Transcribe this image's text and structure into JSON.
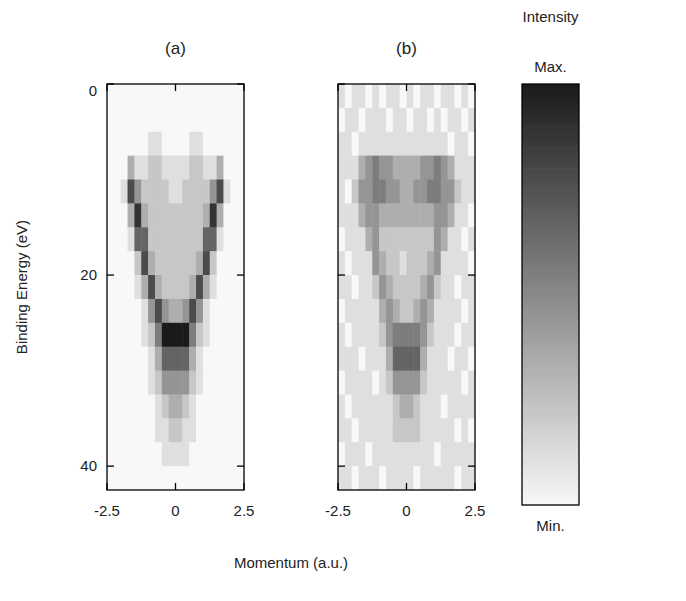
{
  "chart_data": [
    {
      "type": "heatmap",
      "title": "(a)",
      "y_label": "Binding Energy (eV)",
      "xlim": [
        -2.5,
        2.5
      ],
      "ylim": [
        0,
        42.5
      ],
      "xticks": [
        -2.5,
        0,
        2.5
      ],
      "yticks": [
        0,
        20,
        40
      ],
      "tick_labels": true,
      "x_edges": [
        -2.5,
        -2.25,
        -2,
        -1.75,
        -1.5,
        -1.25,
        -1,
        -0.75,
        -0.5,
        -0.25,
        0,
        0.25,
        0.5,
        0.75,
        1,
        1.25,
        1.5,
        1.75,
        2,
        2.25,
        2.5
      ],
      "y_edges": [
        0,
        2.5,
        5,
        7.5,
        10,
        12.5,
        15,
        17.5,
        20,
        22.5,
        25,
        27.5,
        30,
        32.5,
        35,
        37.5,
        40,
        42.5
      ],
      "z": [
        [
          0,
          0,
          0,
          0,
          0,
          0,
          0,
          0,
          0,
          0,
          0,
          0,
          0,
          0,
          0,
          0,
          0,
          0,
          0,
          0
        ],
        [
          0,
          0,
          0,
          0,
          0,
          0,
          0,
          0,
          0,
          0,
          0,
          0,
          0,
          0,
          0,
          0,
          0,
          0,
          0,
          0
        ],
        [
          0,
          0,
          0,
          0,
          0,
          0,
          1,
          1,
          0,
          0,
          0,
          0,
          1,
          1,
          0,
          0,
          0,
          0,
          0,
          0
        ],
        [
          0,
          0,
          0,
          3,
          1,
          1,
          2,
          2,
          1,
          1,
          1,
          1,
          2,
          2,
          1,
          1,
          3,
          0,
          0,
          0
        ],
        [
          0,
          0,
          1,
          7,
          4,
          2,
          2,
          2,
          2,
          1,
          1,
          2,
          2,
          2,
          2,
          4,
          7,
          1,
          0,
          0
        ],
        [
          0,
          0,
          0,
          3,
          8,
          3,
          2,
          2,
          2,
          2,
          2,
          2,
          2,
          2,
          3,
          8,
          3,
          0,
          0,
          0
        ],
        [
          0,
          0,
          0,
          1,
          6,
          6,
          2,
          2,
          2,
          2,
          2,
          2,
          2,
          2,
          6,
          6,
          1,
          0,
          0,
          0
        ],
        [
          0,
          0,
          0,
          0,
          2,
          7,
          3,
          2,
          2,
          2,
          2,
          2,
          2,
          3,
          7,
          2,
          0,
          0,
          0,
          0
        ],
        [
          0,
          0,
          0,
          0,
          1,
          3,
          7,
          3,
          2,
          2,
          2,
          2,
          3,
          7,
          3,
          1,
          0,
          0,
          0,
          0
        ],
        [
          0,
          0,
          0,
          0,
          0,
          1,
          4,
          7,
          4,
          3,
          3,
          4,
          7,
          4,
          1,
          0,
          0,
          0,
          0,
          0
        ],
        [
          0,
          0,
          0,
          0,
          0,
          1,
          2,
          5,
          9,
          9,
          9,
          9,
          5,
          2,
          1,
          0,
          0,
          0,
          0,
          0
        ],
        [
          0,
          0,
          0,
          0,
          0,
          0,
          1,
          3,
          6,
          6,
          6,
          6,
          3,
          1,
          0,
          0,
          0,
          0,
          0,
          0
        ],
        [
          0,
          0,
          0,
          0,
          0,
          0,
          1,
          2,
          4,
          4,
          4,
          4,
          2,
          1,
          0,
          0,
          0,
          0,
          0,
          0
        ],
        [
          0,
          0,
          0,
          0,
          0,
          0,
          0,
          1,
          2,
          3,
          3,
          2,
          1,
          0,
          0,
          0,
          0,
          0,
          0,
          0
        ],
        [
          0,
          0,
          0,
          0,
          0,
          0,
          0,
          1,
          1,
          2,
          2,
          1,
          1,
          0,
          0,
          0,
          0,
          0,
          0,
          0
        ],
        [
          0,
          0,
          0,
          0,
          0,
          0,
          0,
          0,
          1,
          1,
          1,
          1,
          0,
          0,
          0,
          0,
          0,
          0,
          0,
          0
        ],
        [
          0,
          0,
          0,
          0,
          0,
          0,
          0,
          0,
          0,
          0,
          0,
          0,
          0,
          0,
          0,
          0,
          0,
          0,
          0,
          0
        ]
      ]
    },
    {
      "type": "heatmap",
      "title": "(b)",
      "xlim": [
        -2.5,
        2.5
      ],
      "ylim": [
        0,
        42.5
      ],
      "xticks": [
        -2.5,
        0,
        2.5
      ],
      "yticks": [
        0,
        20,
        40
      ],
      "tick_labels": "x",
      "x_edges": [
        -2.5,
        -2.25,
        -2,
        -1.75,
        -1.5,
        -1.25,
        -1,
        -0.75,
        -0.5,
        -0.25,
        0,
        0.25,
        0.5,
        0.75,
        1,
        1.25,
        1.5,
        1.75,
        2,
        2.25,
        2.5
      ],
      "y_edges": [
        0,
        2.5,
        5,
        7.5,
        10,
        12.5,
        15,
        17.5,
        20,
        22.5,
        25,
        27.5,
        30,
        32.5,
        35,
        37.5,
        40,
        42.5
      ],
      "z": [
        [
          1,
          0,
          1,
          1,
          0,
          1,
          0,
          1,
          1,
          0,
          1,
          0,
          1,
          1,
          0,
          1,
          1,
          0,
          1,
          0
        ],
        [
          0,
          1,
          1,
          0,
          1,
          1,
          1,
          0,
          1,
          1,
          0,
          1,
          1,
          0,
          1,
          0,
          1,
          1,
          0,
          1
        ],
        [
          1,
          1,
          0,
          1,
          1,
          1,
          1,
          1,
          1,
          1,
          1,
          1,
          1,
          1,
          1,
          1,
          0,
          1,
          1,
          0
        ],
        [
          1,
          1,
          1,
          3,
          4,
          5,
          4,
          4,
          3,
          3,
          3,
          3,
          4,
          4,
          5,
          4,
          3,
          1,
          1,
          1
        ],
        [
          1,
          0,
          2,
          4,
          4,
          5,
          5,
          4,
          4,
          3,
          3,
          4,
          4,
          5,
          5,
          4,
          4,
          2,
          1,
          1
        ],
        [
          1,
          1,
          1,
          3,
          4,
          4,
          3,
          3,
          3,
          3,
          3,
          3,
          3,
          3,
          4,
          4,
          3,
          1,
          1,
          0
        ],
        [
          0,
          1,
          1,
          1,
          3,
          4,
          2,
          2,
          2,
          2,
          2,
          2,
          2,
          2,
          4,
          3,
          1,
          1,
          0,
          1
        ],
        [
          1,
          0,
          1,
          1,
          1,
          4,
          3,
          2,
          2,
          1,
          2,
          2,
          2,
          3,
          4,
          1,
          1,
          1,
          1,
          0
        ],
        [
          1,
          1,
          0,
          1,
          1,
          2,
          4,
          3,
          2,
          2,
          2,
          2,
          3,
          4,
          2,
          1,
          1,
          0,
          1,
          1
        ],
        [
          0,
          1,
          1,
          1,
          1,
          1,
          3,
          4,
          3,
          2,
          2,
          3,
          4,
          3,
          1,
          1,
          1,
          1,
          0,
          1
        ],
        [
          1,
          0,
          1,
          1,
          1,
          1,
          2,
          4,
          5,
          5,
          5,
          5,
          4,
          2,
          1,
          1,
          1,
          0,
          1,
          1
        ],
        [
          1,
          1,
          1,
          0,
          1,
          1,
          1,
          3,
          6,
          6,
          6,
          6,
          3,
          1,
          1,
          1,
          0,
          1,
          1,
          0
        ],
        [
          0,
          1,
          1,
          1,
          1,
          0,
          1,
          2,
          4,
          4,
          4,
          4,
          2,
          1,
          1,
          1,
          1,
          1,
          0,
          1
        ],
        [
          1,
          0,
          1,
          1,
          1,
          1,
          1,
          1,
          2,
          3,
          3,
          2,
          1,
          1,
          1,
          0,
          1,
          1,
          1,
          1
        ],
        [
          1,
          1,
          0,
          1,
          1,
          1,
          1,
          1,
          2,
          2,
          2,
          2,
          1,
          1,
          1,
          1,
          1,
          0,
          1,
          0
        ],
        [
          0,
          1,
          1,
          1,
          0,
          1,
          1,
          1,
          1,
          1,
          1,
          1,
          1,
          1,
          0,
          1,
          1,
          1,
          1,
          1
        ],
        [
          1,
          1,
          0,
          1,
          1,
          1,
          0,
          1,
          1,
          1,
          1,
          0,
          1,
          1,
          1,
          1,
          1,
          0,
          1,
          1
        ]
      ]
    }
  ],
  "x_label": "Momentum (a.u.)",
  "colorbar": {
    "title": "Intensity",
    "range": [
      0,
      9
    ],
    "ticks": [
      {
        "value": 9,
        "label": "Max."
      },
      {
        "value": 0,
        "label": "Min."
      }
    ]
  }
}
